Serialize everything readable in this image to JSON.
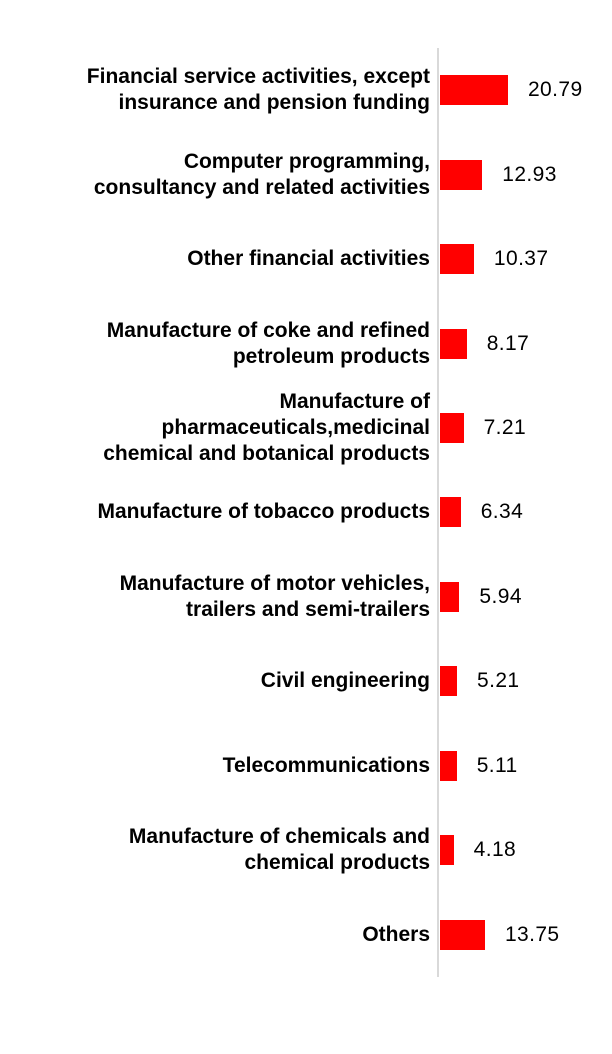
{
  "chart_data": {
    "type": "bar",
    "orientation": "horizontal",
    "categories": [
      "Financial service activities, except insurance and pension funding",
      "Computer programming, consultancy and related activities",
      "Other financial activities",
      "Manufacture of coke and refined petroleum products",
      "Manufacture of pharmaceuticals,medicinal chemical and botanical products",
      "Manufacture of tobacco products",
      "Manufacture of motor vehicles, trailers and semi-trailers",
      "Civil engineering",
      "Telecommunications",
      "Manufacture of chemicals and chemical products",
      "Others"
    ],
    "label_lines": [
      [
        "Financial service activities, except",
        "insurance and pension funding"
      ],
      [
        "Computer programming,",
        "consultancy and related activities"
      ],
      [
        "Other financial activities"
      ],
      [
        "Manufacture of coke and refined",
        "petroleum products"
      ],
      [
        "Manufacture of",
        "pharmaceuticals,medicinal",
        "chemical and botanical products"
      ],
      [
        "Manufacture of tobacco products"
      ],
      [
        "Manufacture of motor vehicles,",
        "trailers and semi-trailers"
      ],
      [
        "Civil engineering"
      ],
      [
        "Telecommunications"
      ],
      [
        "Manufacture of chemicals and",
        "chemical products"
      ],
      [
        "Others"
      ]
    ],
    "values": [
      20.79,
      12.93,
      10.37,
      8.17,
      7.21,
      6.34,
      5.94,
      5.21,
      5.11,
      4.18,
      13.75
    ],
    "value_labels": [
      "20.79",
      "12.93",
      "10.37",
      "8.17",
      "7.21",
      "6.34",
      "5.94",
      "5.21",
      "5.11",
      "4.18",
      "13.75"
    ],
    "grid": false,
    "legend": false,
    "bar_color": "#ff0000",
    "axis_line_color": "#d9d9d9",
    "text_color": "#000000"
  }
}
